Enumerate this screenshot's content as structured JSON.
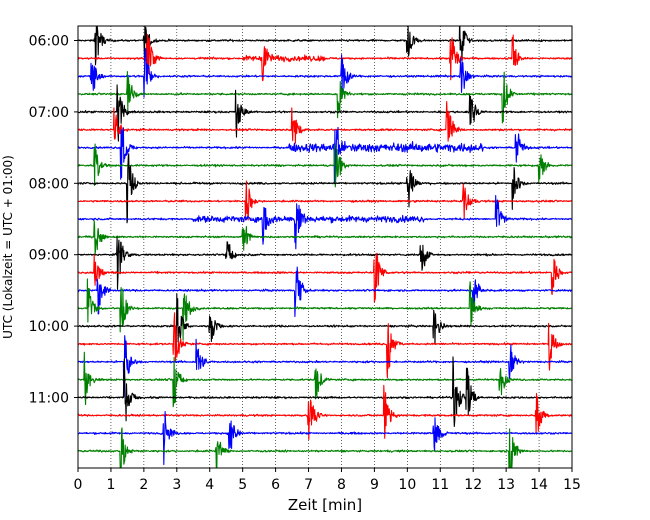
{
  "chart_data": {
    "type": "line",
    "subtype": "helicorder",
    "title": "",
    "xlabel": "Zeit  [min]",
    "ylabel": "UTC (Lokalzeit = UTC + 01:00)",
    "xlim": [
      0,
      15
    ],
    "x_ticks": [
      "0",
      "1",
      "2",
      "3",
      "4",
      "5",
      "6",
      "7",
      "8",
      "9",
      "10",
      "11",
      "12",
      "13",
      "14",
      "15"
    ],
    "y_tick_labels": [
      "06:00",
      "07:00",
      "08:00",
      "09:00",
      "10:00",
      "11:00"
    ],
    "trace_start_time": "06:00",
    "trace_interval_minutes": 15,
    "trace_count": 24,
    "trace_colors": [
      "#000000",
      "#ff0000",
      "#0000ff",
      "#008000"
    ],
    "vertical_gridlines": true,
    "grid_style": "dotted",
    "events": [
      {
        "trace": 0,
        "minute": 0.5,
        "amp": 1.6
      },
      {
        "trace": 0,
        "minute": 2.0,
        "amp": 1.0
      },
      {
        "trace": 0,
        "minute": 10.0,
        "amp": 0.9
      },
      {
        "trace": 0,
        "minute": 11.6,
        "amp": 1.3
      },
      {
        "trace": 1,
        "minute": 2.1,
        "amp": 1.4
      },
      {
        "trace": 1,
        "minute": 5.6,
        "amp": 1.0
      },
      {
        "trace": 1,
        "minute": 11.3,
        "amp": 1.5
      },
      {
        "trace": 1,
        "minute": 13.2,
        "amp": 1.0
      },
      {
        "trace": 2,
        "minute": 0.4,
        "amp": 1.2
      },
      {
        "trace": 2,
        "minute": 2.0,
        "amp": 1.6
      },
      {
        "trace": 2,
        "minute": 8.0,
        "amp": 1.2
      },
      {
        "trace": 2,
        "minute": 11.6,
        "amp": 1.4
      },
      {
        "trace": 3,
        "minute": 1.5,
        "amp": 1.0
      },
      {
        "trace": 3,
        "minute": 7.9,
        "amp": 1.1
      },
      {
        "trace": 3,
        "minute": 12.9,
        "amp": 1.3
      },
      {
        "trace": 4,
        "minute": 1.2,
        "amp": 1.4
      },
      {
        "trace": 4,
        "minute": 4.8,
        "amp": 1.2
      },
      {
        "trace": 4,
        "minute": 11.9,
        "amp": 1.0
      },
      {
        "trace": 5,
        "minute": 1.1,
        "amp": 1.0
      },
      {
        "trace": 5,
        "minute": 6.5,
        "amp": 1.3
      },
      {
        "trace": 5,
        "minute": 11.2,
        "amp": 1.6
      },
      {
        "trace": 6,
        "minute": 1.3,
        "amp": 1.5
      },
      {
        "trace": 6,
        "minute": 7.8,
        "amp": 1.8
      },
      {
        "trace": 6,
        "minute": 13.3,
        "amp": 1.0
      },
      {
        "trace": 7,
        "minute": 0.5,
        "amp": 1.2
      },
      {
        "trace": 7,
        "minute": 7.8,
        "amp": 1.5
      },
      {
        "trace": 7,
        "minute": 14.0,
        "amp": 1.0
      },
      {
        "trace": 8,
        "minute": 1.5,
        "amp": 1.6
      },
      {
        "trace": 8,
        "minute": 10.0,
        "amp": 1.4
      },
      {
        "trace": 8,
        "minute": 13.2,
        "amp": 1.1
      },
      {
        "trace": 9,
        "minute": 5.1,
        "amp": 1.2
      },
      {
        "trace": 9,
        "minute": 11.7,
        "amp": 1.0
      },
      {
        "trace": 10,
        "minute": 5.6,
        "amp": 1.2
      },
      {
        "trace": 10,
        "minute": 6.6,
        "amp": 1.5
      },
      {
        "trace": 10,
        "minute": 12.7,
        "amp": 1.0
      },
      {
        "trace": 11,
        "minute": 0.5,
        "amp": 1.0
      },
      {
        "trace": 11,
        "minute": 5.0,
        "amp": 1.0
      },
      {
        "trace": 12,
        "minute": 1.2,
        "amp": 1.5
      },
      {
        "trace": 12,
        "minute": 4.5,
        "amp": 1.0
      },
      {
        "trace": 12,
        "minute": 10.4,
        "amp": 1.2
      },
      {
        "trace": 13,
        "minute": 0.5,
        "amp": 1.0
      },
      {
        "trace": 13,
        "minute": 9.0,
        "amp": 1.5
      },
      {
        "trace": 13,
        "minute": 14.4,
        "amp": 1.0
      },
      {
        "trace": 14,
        "minute": 0.6,
        "amp": 1.2
      },
      {
        "trace": 14,
        "minute": 6.6,
        "amp": 1.6
      },
      {
        "trace": 14,
        "minute": 12.0,
        "amp": 1.0
      },
      {
        "trace": 15,
        "minute": 0.3,
        "amp": 1.2
      },
      {
        "trace": 15,
        "minute": 1.3,
        "amp": 1.4
      },
      {
        "trace": 15,
        "minute": 3.2,
        "amp": 1.5
      },
      {
        "trace": 15,
        "minute": 11.9,
        "amp": 1.0
      },
      {
        "trace": 16,
        "minute": 3.0,
        "amp": 1.4
      },
      {
        "trace": 16,
        "minute": 4.0,
        "amp": 1.0
      },
      {
        "trace": 16,
        "minute": 10.8,
        "amp": 1.2
      },
      {
        "trace": 17,
        "minute": 2.9,
        "amp": 1.6
      },
      {
        "trace": 17,
        "minute": 9.4,
        "amp": 1.4
      },
      {
        "trace": 17,
        "minute": 14.3,
        "amp": 1.2
      },
      {
        "trace": 18,
        "minute": 1.4,
        "amp": 1.4
      },
      {
        "trace": 18,
        "minute": 3.6,
        "amp": 1.0
      },
      {
        "trace": 18,
        "minute": 13.1,
        "amp": 1.0
      },
      {
        "trace": 19,
        "minute": 0.2,
        "amp": 1.2
      },
      {
        "trace": 19,
        "minute": 2.9,
        "amp": 1.4
      },
      {
        "trace": 19,
        "minute": 7.2,
        "amp": 1.2
      },
      {
        "trace": 19,
        "minute": 12.8,
        "amp": 1.0
      },
      {
        "trace": 20,
        "minute": 1.4,
        "amp": 1.5
      },
      {
        "trace": 20,
        "minute": 11.4,
        "amp": 1.8
      },
      {
        "trace": 20,
        "minute": 11.8,
        "amp": 1.5
      },
      {
        "trace": 21,
        "minute": 7.0,
        "amp": 1.4
      },
      {
        "trace": 21,
        "minute": 9.3,
        "amp": 1.4
      },
      {
        "trace": 21,
        "minute": 13.9,
        "amp": 1.2
      },
      {
        "trace": 22,
        "minute": 2.6,
        "amp": 1.4
      },
      {
        "trace": 22,
        "minute": 4.6,
        "amp": 1.2
      },
      {
        "trace": 22,
        "minute": 10.8,
        "amp": 1.3
      },
      {
        "trace": 23,
        "minute": 1.3,
        "amp": 1.2
      },
      {
        "trace": 23,
        "minute": 4.2,
        "amp": 1.0
      },
      {
        "trace": 23,
        "minute": 13.1,
        "amp": 1.4
      }
    ],
    "noisy_segments": [
      {
        "trace": 6,
        "from_minute": 6.4,
        "to_minute": 12.3,
        "amp": 0.55
      },
      {
        "trace": 10,
        "from_minute": 3.5,
        "to_minute": 10.5,
        "amp": 0.35
      },
      {
        "trace": 1,
        "from_minute": 5.0,
        "to_minute": 7.5,
        "amp": 0.3
      }
    ]
  }
}
